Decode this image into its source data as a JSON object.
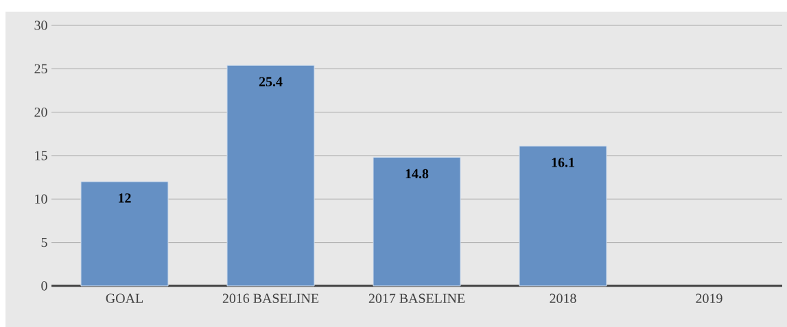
{
  "chart_data": {
    "type": "bar",
    "categories": [
      "GOAL",
      "2016 BASELINE",
      "2017 BASELINE",
      "2018",
      "2019"
    ],
    "values": [
      12,
      25.4,
      14.8,
      16.1,
      null
    ],
    "color": "#6590c4",
    "ylim": [
      0,
      30
    ],
    "yticks": [
      0,
      5,
      10,
      15,
      20,
      25,
      30
    ],
    "grid": "y",
    "data_labels": true
  }
}
